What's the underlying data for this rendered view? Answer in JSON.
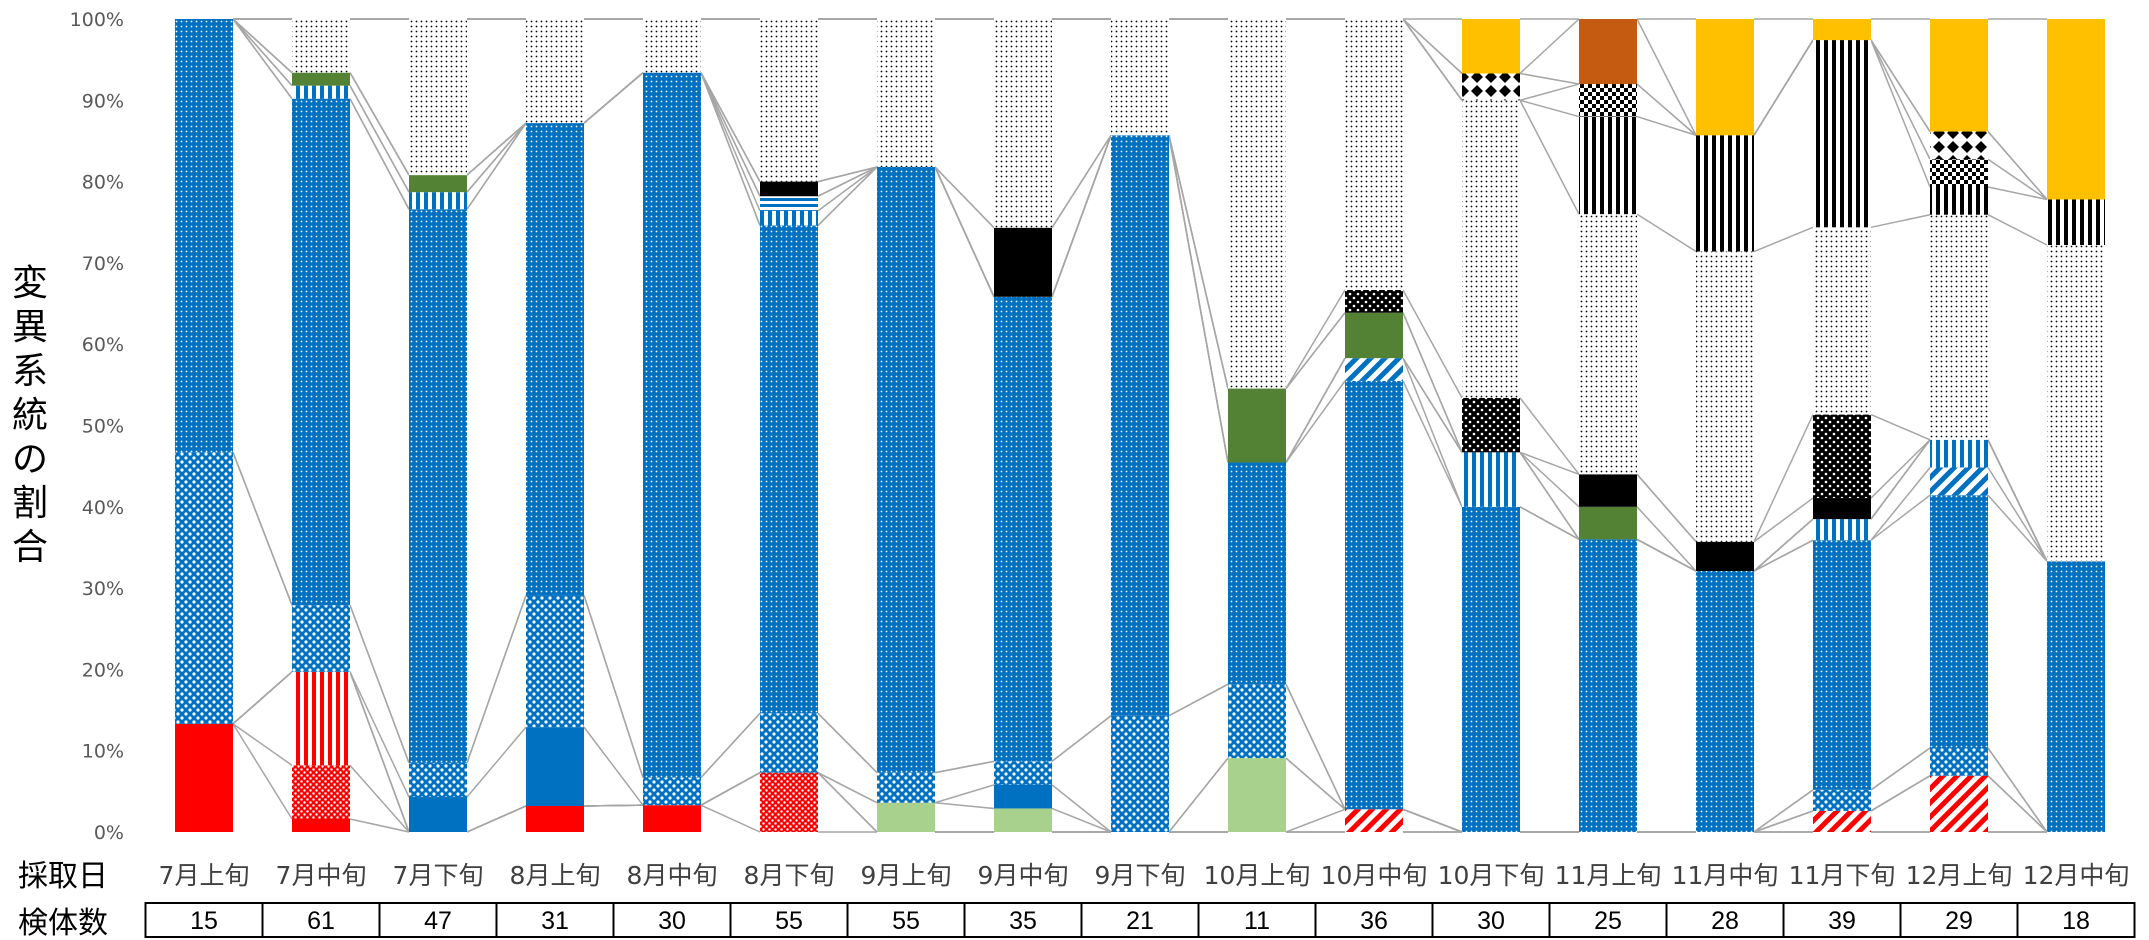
{
  "chart_data": {
    "type": "bar",
    "stacked": true,
    "ylabel": "変異系統の割合",
    "ylim": [
      0,
      100
    ],
    "yticks": [
      "0%",
      "10%",
      "20%",
      "30%",
      "40%",
      "50%",
      "60%",
      "70%",
      "80%",
      "90%",
      "100%"
    ],
    "row_labels": {
      "date": "採取日",
      "count": "検体数"
    },
    "categories": [
      "7月上旬",
      "7月中旬",
      "7月下旬",
      "8月上旬",
      "8月中旬",
      "8月下旬",
      "9月上旬",
      "9月中旬",
      "9月下旬",
      "10月上旬",
      "10月中旬",
      "10月下旬",
      "11月上旬",
      "11月中旬",
      "11月下旬",
      "12月上旬",
      "12月中旬"
    ],
    "sample_counts": [
      "15",
      "61",
      "47",
      "31",
      "30",
      "55",
      "55",
      "35",
      "21",
      "11",
      "36",
      "30",
      "25",
      "28",
      "39",
      "29",
      "18"
    ],
    "grid": false,
    "legend": "none",
    "series": [
      {
        "color": "#ff0000",
        "pattern": "solid",
        "values": [
          13.3,
          1.6,
          0,
          3.2,
          3.3,
          0,
          0,
          0,
          0,
          0,
          0,
          0,
          0,
          0,
          0,
          0,
          0
        ]
      },
      {
        "color": "#ff0000",
        "pattern": "dots",
        "values": [
          0,
          6.6,
          0,
          0,
          0,
          7.3,
          0,
          0,
          0,
          0,
          0,
          0,
          0,
          0,
          0,
          0,
          0
        ]
      },
      {
        "color": "#ff0000",
        "pattern": "vlines",
        "values": [
          0,
          11.5,
          0,
          0,
          0,
          0,
          0,
          0,
          0,
          0,
          0,
          0,
          0,
          0,
          0,
          0,
          0
        ]
      },
      {
        "color": "#ff0000",
        "pattern": "diagonal",
        "values": [
          0,
          0,
          0,
          0,
          0,
          0,
          0,
          0,
          0,
          0,
          2.8,
          0,
          0,
          0,
          2.6,
          6.9,
          0
        ]
      },
      {
        "color": "#a9d18e",
        "pattern": "solid",
        "values": [
          0,
          0,
          0,
          0,
          0,
          0,
          3.6,
          2.9,
          0,
          9.1,
          0,
          0,
          0,
          0,
          0,
          0,
          0
        ]
      },
      {
        "color": "#0070c0",
        "pattern": "solid",
        "values": [
          0,
          0,
          4.3,
          9.7,
          0,
          0,
          0,
          2.9,
          0,
          0,
          0,
          0,
          0,
          0,
          0,
          0,
          0
        ]
      },
      {
        "color": "#0070c0",
        "pattern": "dots-large",
        "values": [
          33.4,
          8.2,
          4.2,
          16.2,
          3.4,
          7.3,
          3.7,
          2.9,
          14.3,
          9.1,
          0,
          0,
          0,
          0,
          2.6,
          3.4,
          0
        ]
      },
      {
        "color": "#0070c0",
        "pattern": "dots-dense",
        "values": [
          0,
          0,
          0,
          0,
          0,
          0,
          0,
          0,
          0,
          0,
          0,
          0,
          0,
          0,
          0,
          0,
          0
        ]
      },
      {
        "color": "#0070c0",
        "pattern": "dots-small",
        "values": [
          53.3,
          62.3,
          68.1,
          58.1,
          86.7,
          60.0,
          74.5,
          57.2,
          71.4,
          27.3,
          52.8,
          40.0,
          36.0,
          32.1,
          30.8,
          31.0,
          33.3
        ]
      },
      {
        "color": "#0070c0",
        "pattern": "diagonal",
        "values": [
          0,
          0,
          0,
          0,
          0,
          0,
          0,
          0,
          0,
          0,
          2.8,
          0,
          0,
          0,
          0,
          3.4,
          0
        ]
      },
      {
        "color": "#0070c0",
        "pattern": "vlines",
        "values": [
          0,
          1.6,
          2.1,
          0,
          0,
          1.8,
          0,
          0,
          0,
          0,
          0,
          6.7,
          0,
          0,
          2.6,
          3.4,
          0
        ]
      },
      {
        "color": "#0070c0",
        "pattern": "hlines",
        "values": [
          0,
          0,
          0,
          0,
          0,
          1.8,
          0,
          0,
          0,
          0,
          0,
          0,
          0,
          0,
          0,
          0,
          0
        ]
      },
      {
        "color": "#548235",
        "pattern": "solid",
        "values": [
          0,
          1.6,
          2.1,
          0,
          0,
          0,
          0,
          0,
          0,
          9.1,
          5.6,
          0,
          4.0,
          0,
          0,
          0,
          0
        ]
      },
      {
        "color": "#000000",
        "pattern": "solid",
        "values": [
          0,
          0,
          0,
          0,
          0,
          1.8,
          0,
          8.5,
          0,
          0,
          0,
          0,
          4.0,
          3.6,
          2.6,
          0,
          0
        ]
      },
      {
        "color": "#000000",
        "pattern": "dots-large",
        "values": [
          0,
          0,
          0,
          0,
          0,
          0,
          0,
          0,
          0,
          0,
          2.8,
          6.7,
          0,
          0,
          10.3,
          0,
          0
        ]
      },
      {
        "color": "#000000",
        "pattern": "dots-small",
        "values": [
          0,
          6.6,
          19.2,
          12.8,
          6.6,
          20.0,
          18.2,
          25.7,
          14.3,
          45.5,
          33.4,
          36.6,
          32.0,
          35.7,
          23.1,
          27.6,
          38.9
        ]
      },
      {
        "color": "#000000",
        "pattern": "vlines",
        "values": [
          0,
          0,
          0,
          0,
          0,
          0,
          0,
          0,
          0,
          0,
          0,
          0,
          12.0,
          14.3,
          23.1,
          3.4,
          5.6
        ]
      },
      {
        "color": "#000000",
        "pattern": "checker",
        "values": [
          0,
          0,
          0,
          0,
          0,
          0,
          0,
          0,
          0,
          0,
          0,
          0,
          4.0,
          0,
          0,
          3.4,
          0
        ]
      },
      {
        "color": "#000000",
        "pattern": "diamonds",
        "values": [
          0,
          0,
          0,
          0,
          0,
          0,
          0,
          0,
          0,
          0,
          0,
          3.3,
          0,
          0,
          0,
          3.4,
          0
        ]
      },
      {
        "color": "#c55a11",
        "pattern": "solid",
        "values": [
          0,
          0,
          0,
          0,
          0,
          0,
          0,
          0,
          0,
          0,
          0,
          0,
          8.0,
          0,
          0,
          0,
          0
        ]
      },
      {
        "color": "#ffc000",
        "pattern": "solid",
        "values": [
          0,
          0,
          0,
          0,
          0,
          0,
          0,
          0,
          0,
          0,
          0,
          6.7,
          0,
          14.3,
          2.6,
          13.8,
          22.2
        ]
      }
    ]
  }
}
